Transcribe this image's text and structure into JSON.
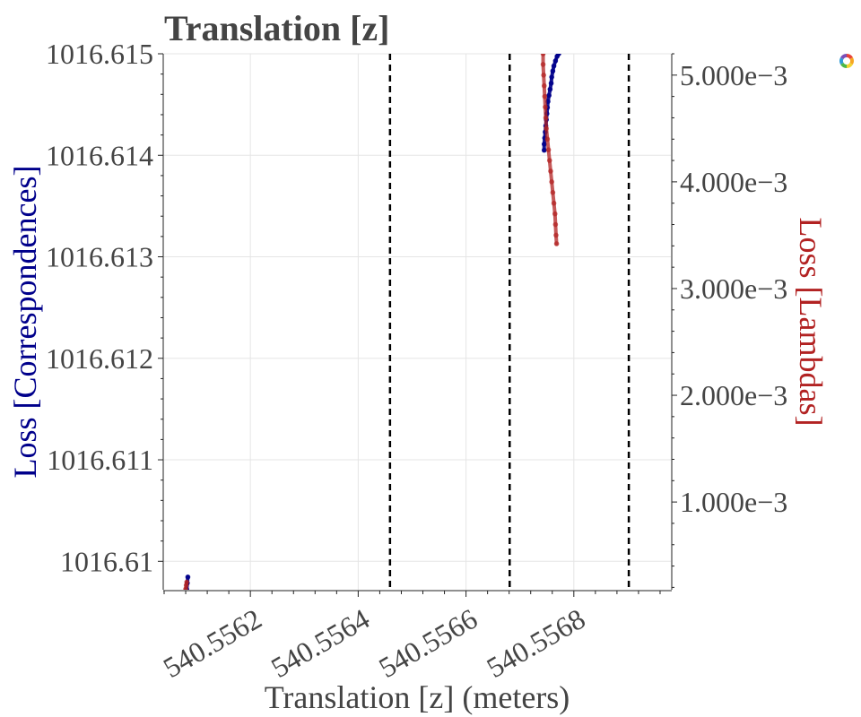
{
  "colors": {
    "left_series": "#00008b",
    "right_series": "#b22222",
    "text": "#444444",
    "grid": "#e5e5e5"
  },
  "toolbar": {
    "icon": "bokeh-logo-icon"
  },
  "chart_data": {
    "type": "scatter",
    "title": "Translation [z]",
    "xlabel": "Translation [z] (meters)",
    "ylabel_left": "Loss [Correspondences]",
    "ylabel_right": "Loss [Lambdas]",
    "xlim": [
      540.55604,
      540.55698
    ],
    "ylim_left": [
      1016.60972,
      1016.615
    ],
    "ylim_right": [
      0.000178,
      0.0052
    ],
    "x_ticks": [
      540.5562,
      540.5564,
      540.5566,
      540.5568
    ],
    "x_tick_labels": [
      "540.5562",
      "540.5564",
      "540.5566",
      "540.5568"
    ],
    "y_left_ticks": [
      1016.61,
      1016.611,
      1016.612,
      1016.613,
      1016.614,
      1016.615
    ],
    "y_left_tick_labels": [
      "1016.61",
      "1016.611",
      "1016.612",
      "1016.613",
      "1016.614",
      "1016.615"
    ],
    "y_right_ticks": [
      0.001,
      0.002,
      0.003,
      0.004,
      0.005
    ],
    "y_right_tick_labels": [
      "1.000e−3",
      "2.000e−3",
      "3.000e−3",
      "4.000e−3",
      "5.000e−3"
    ],
    "vertical_lines": [
      540.556459,
      540.556681,
      540.556902
    ],
    "grid": true,
    "legend": "none",
    "series": [
      {
        "axis": "left",
        "points": [
          [
            540.556082,
            1016.609722
          ],
          [
            540.556083,
            1016.609785
          ],
          [
            540.556084,
            1016.609845
          ],
          [
            540.556745,
            1016.61405
          ],
          [
            540.556745,
            1016.61411
          ],
          [
            540.556746,
            1016.61417
          ],
          [
            540.556747,
            1016.61423
          ],
          [
            540.556748,
            1016.61429
          ],
          [
            540.556749,
            1016.61435
          ],
          [
            540.55675,
            1016.61441
          ],
          [
            540.556751,
            1016.61447
          ],
          [
            540.556752,
            1016.61453
          ],
          [
            540.556754,
            1016.61459
          ],
          [
            540.556756,
            1016.61465
          ],
          [
            540.556758,
            1016.61471
          ],
          [
            540.556759,
            1016.61477
          ],
          [
            540.556761,
            1016.61483
          ],
          [
            540.556763,
            1016.61488
          ],
          [
            540.556766,
            1016.61493
          ],
          [
            540.556769,
            1016.614975
          ],
          [
            540.556772,
            1016.615
          ]
        ]
      },
      {
        "axis": "right",
        "points": [
          [
            540.55608,
            0.000185
          ],
          [
            540.556081,
            0.00022
          ],
          [
            540.556082,
            0.00025
          ],
          [
            540.556743,
            0.0052
          ],
          [
            540.556743,
            0.0051
          ],
          [
            540.556744,
            0.005
          ],
          [
            540.556745,
            0.0049
          ],
          [
            540.556746,
            0.0048
          ],
          [
            540.556747,
            0.0047
          ],
          [
            540.556748,
            0.0046
          ],
          [
            540.556749,
            0.0045
          ],
          [
            540.556751,
            0.0044
          ],
          [
            540.556753,
            0.0043
          ],
          [
            540.556755,
            0.0042
          ],
          [
            540.556757,
            0.0041
          ],
          [
            540.556759,
            0.004
          ],
          [
            540.556761,
            0.0039
          ],
          [
            540.556763,
            0.0038
          ],
          [
            540.556765,
            0.0037
          ],
          [
            540.556766,
            0.0036
          ],
          [
            540.556767,
            0.0035
          ],
          [
            540.556768,
            0.00342
          ]
        ]
      }
    ]
  }
}
